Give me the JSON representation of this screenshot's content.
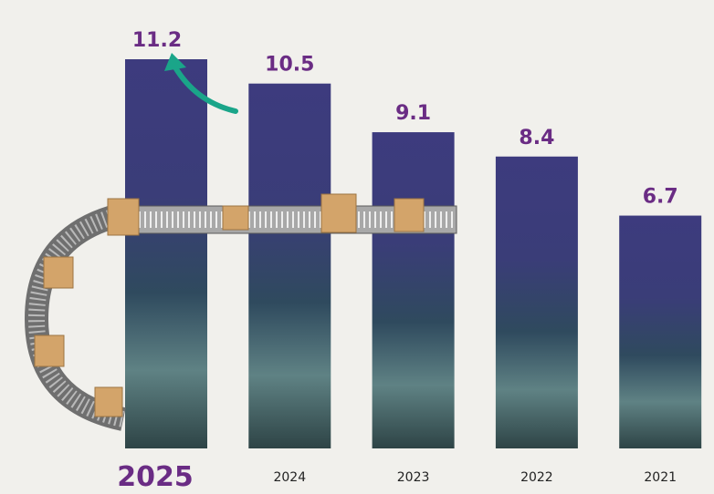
{
  "chart_data": {
    "type": "bar",
    "categories": [
      "2025",
      "2024",
      "2023",
      "2022",
      "2021"
    ],
    "values": [
      11.2,
      10.5,
      9.1,
      8.4,
      6.7
    ],
    "color": "#3d3b7e"
  }
}
